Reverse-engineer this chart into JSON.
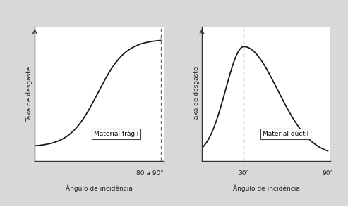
{
  "ylabel": "Taxa de desgaste",
  "xlabel": "Ângulo de incidência",
  "label_fragil": "Material frágil",
  "label_ductil": "Material dúctil",
  "xtick_fragil": "80 a 90°",
  "xtick_ductil_1": "30°",
  "xtick_ductil_2": "90°",
  "background_color": "#d8d8d8",
  "plot_bg": "#ffffff",
  "line_color": "#1a1a1a",
  "dashed_color": "#666666",
  "text_color": "#222222",
  "spine_color": "#333333"
}
